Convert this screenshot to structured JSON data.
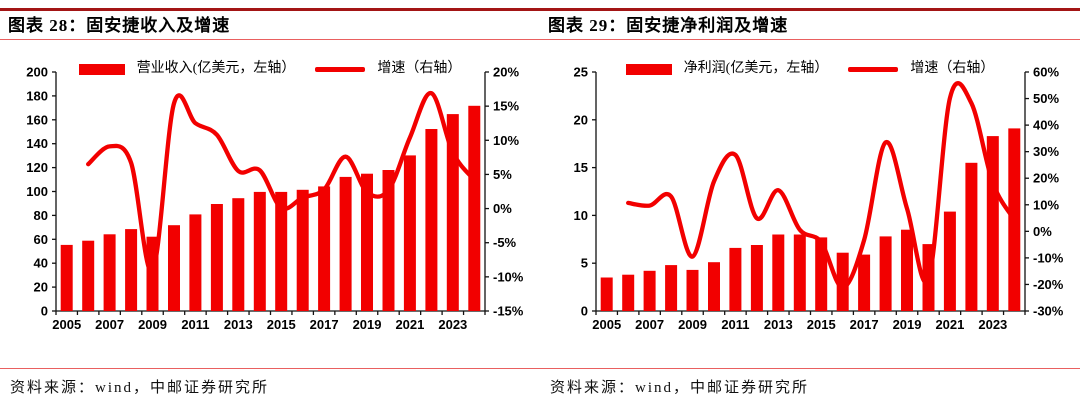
{
  "page": {
    "source_text": "资料来源：wind，中邮证券研究所"
  },
  "panels": [
    {
      "title": "图表 28：固安捷收入及增速"
    },
    {
      "title": "图表 29：固安捷净利润及增速"
    }
  ],
  "colors": {
    "series_red": "#F20000",
    "top_rule_dark_red": "#A31515",
    "thin_rule_red": "#E96060",
    "axis_black": "#111111"
  },
  "chart_data": [
    {
      "type": "bar+line",
      "title": "固安捷收入及增速",
      "categories": [
        2005,
        2006,
        2007,
        2008,
        2009,
        2010,
        2011,
        2012,
        2013,
        2014,
        2015,
        2016,
        2017,
        2018,
        2019,
        2020,
        2021,
        2022,
        2023,
        2024
      ],
      "x_tick_labels_shown": [
        "2005",
        "2007",
        "2009",
        "2011",
        "2013",
        "2015",
        "2017",
        "2019",
        "2021",
        "2023"
      ],
      "series": [
        {
          "name": "营业收入(亿美元，左轴）",
          "type": "bar",
          "axis": "left",
          "values": [
            55.3,
            58.8,
            64.2,
            68.5,
            62.2,
            71.8,
            80.8,
            89.5,
            94.4,
            99.7,
            99.7,
            101.4,
            104.3,
            112.2,
            114.9,
            118.0,
            130.2,
            152.3,
            164.8,
            171.7
          ]
        },
        {
          "name": "增速（右轴）",
          "type": "line",
          "axis": "right",
          "values": [
            null,
            6.5,
            9.1,
            6.7,
            -9.2,
            15.4,
            12.5,
            10.8,
            5.5,
            5.6,
            0.1,
            1.6,
            2.8,
            7.6,
            2.4,
            2.7,
            10.4,
            16.9,
            8.2,
            4.2
          ]
        }
      ],
      "left_axis": {
        "min": 0,
        "max": 200,
        "step": 20,
        "suffix": ""
      },
      "right_axis": {
        "min": -15,
        "max": 20,
        "step": 5,
        "suffix": "%"
      },
      "grid": false,
      "legend_position": "top-center"
    },
    {
      "type": "bar+line",
      "title": "固安捷净利润及增速",
      "categories": [
        2005,
        2006,
        2007,
        2008,
        2009,
        2010,
        2011,
        2012,
        2013,
        2014,
        2015,
        2016,
        2017,
        2018,
        2019,
        2020,
        2021,
        2022,
        2023,
        2024
      ],
      "x_tick_labels_shown": [
        "2005",
        "2007",
        "2009",
        "2011",
        "2013",
        "2015",
        "2017",
        "2019",
        "2021",
        "2023"
      ],
      "series": [
        {
          "name": "净利润(亿美元，左轴）",
          "type": "bar",
          "axis": "left",
          "values": [
            3.5,
            3.8,
            4.2,
            4.8,
            4.3,
            5.1,
            6.6,
            6.9,
            8.0,
            8.0,
            7.7,
            6.1,
            5.9,
            7.8,
            8.5,
            7.0,
            10.4,
            15.5,
            18.3,
            19.1
          ]
        },
        {
          "name": "增速（右轴）",
          "type": "line",
          "axis": "right",
          "values": [
            null,
            10.7,
            9.7,
            13.1,
            -9.5,
            18.8,
            28.8,
            4.9,
            15.5,
            0.6,
            -4.1,
            -21.2,
            -3.3,
            33.5,
            8.6,
            -18.1,
            50.1,
            48.3,
            18.2,
            4.4
          ]
        }
      ],
      "left_axis": {
        "min": 0,
        "max": 25,
        "step": 5,
        "suffix": ""
      },
      "right_axis": {
        "min": -30,
        "max": 60,
        "step": 10,
        "suffix": "%"
      },
      "grid": false,
      "legend_position": "top-center"
    }
  ]
}
